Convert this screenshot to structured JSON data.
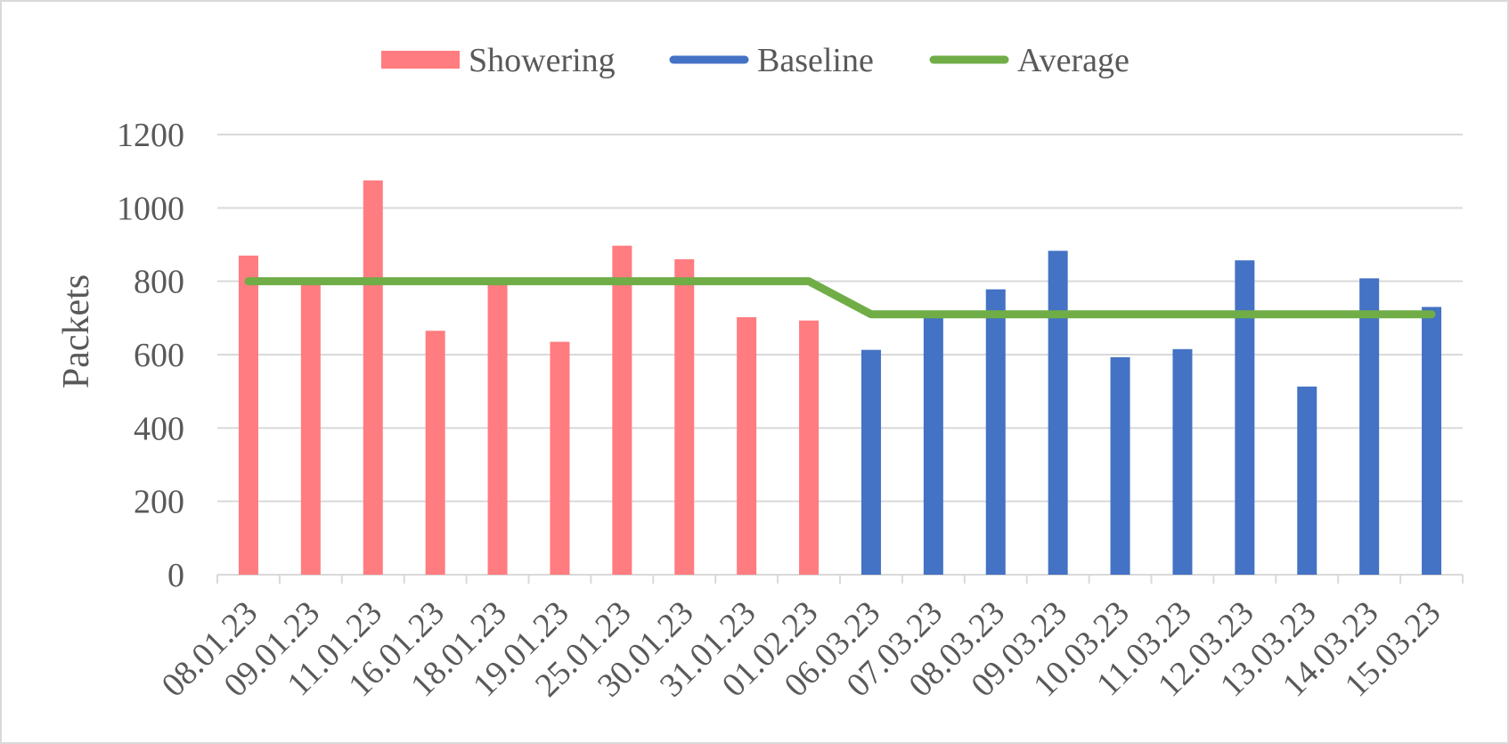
{
  "chart_data": {
    "type": "bar",
    "title": "",
    "xlabel": "",
    "ylabel": "Packets",
    "ylim": [
      0,
      1200
    ],
    "yticks": [
      0,
      200,
      400,
      600,
      800,
      1000,
      1200
    ],
    "grid": true,
    "legend_position": "top-center",
    "categories": [
      "08.01.23",
      "09.01.23",
      "11.01.23",
      "16.01.23",
      "18.01.23",
      "19.01.23",
      "25.01.23",
      "30.01.23",
      "31.01.23",
      "01.02.23",
      "06.03.23",
      "07.03.23",
      "08.03.23",
      "09.03.23",
      "10.03.23",
      "11.03.23",
      "12.03.23",
      "13.03.23",
      "14.03.23",
      "15.03.23"
    ],
    "series": [
      {
        "name": "Showering",
        "kind": "bar",
        "color": "#ff7c80",
        "values": [
          870,
          800,
          1075,
          665,
          800,
          635,
          897,
          860,
          702,
          693,
          null,
          null,
          null,
          null,
          null,
          null,
          null,
          null,
          null,
          null
        ]
      },
      {
        "name": "Baseline",
        "kind": "bar",
        "color": "#4472c4",
        "values": [
          null,
          null,
          null,
          null,
          null,
          null,
          null,
          null,
          null,
          null,
          613,
          710,
          778,
          883,
          593,
          615,
          857,
          513,
          808,
          730
        ]
      },
      {
        "name": "Average",
        "kind": "line",
        "color": "#70ad47",
        "values": [
          800,
          800,
          800,
          800,
          800,
          800,
          800,
          800,
          800,
          800,
          710,
          710,
          710,
          710,
          710,
          710,
          710,
          710,
          710,
          710
        ]
      }
    ]
  }
}
